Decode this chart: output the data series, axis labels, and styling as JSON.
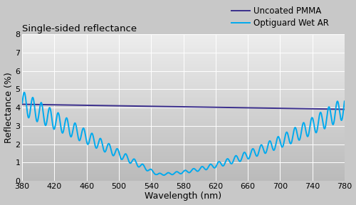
{
  "title": "Single-sided reflectance",
  "xlabel": "Wavelength (nm)",
  "ylabel": "Reflectance (%)",
  "xlim": [
    380,
    780
  ],
  "ylim": [
    0,
    8
  ],
  "xticks": [
    380,
    420,
    460,
    500,
    540,
    580,
    620,
    660,
    700,
    740,
    780
  ],
  "yticks": [
    0,
    1,
    2,
    3,
    4,
    5,
    6,
    7,
    8
  ],
  "pmma_color": "#3a2e8c",
  "ar_color": "#00aaee",
  "legend_pmma": "Uncoated PMMA",
  "legend_ar": "Optiguard Wet AR",
  "fig_bg_color": "#c8c8c8",
  "plot_bg_top": "#e8e8e8",
  "plot_bg_bottom": "#b8b8b8",
  "grid_color": "#ffffff",
  "title_fontsize": 9.5,
  "axis_label_fontsize": 9,
  "tick_fontsize": 8,
  "legend_fontsize": 8.5,
  "pmma_linewidth": 1.4,
  "ar_linewidth": 1.4
}
